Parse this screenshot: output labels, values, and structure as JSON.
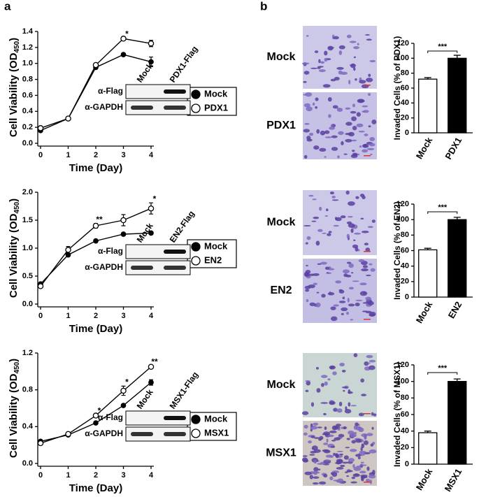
{
  "panel_labels": [
    "a",
    "b"
  ],
  "chart_data": [
    {
      "type": "line",
      "y_label": [
        "Cell Viability (OD",
        "450",
        ")"
      ],
      "x_label": "Time (Day)",
      "x": [
        0,
        1,
        2,
        3,
        4
      ],
      "xlim": [
        0,
        4
      ],
      "xticks": [
        0,
        1,
        2,
        3,
        4
      ],
      "ylim": [
        0,
        1.4
      ],
      "yticks": [
        {
          "value": 0,
          "label": "0.0"
        },
        0.2,
        0.4,
        0.6,
        0.8,
        {
          "value": 1,
          "label": "1.0"
        },
        1.2,
        1.4
      ],
      "legend": "right",
      "series": [
        {
          "name": "Mock",
          "color": "#000000",
          "marker_fill": "#000000",
          "values": [
            0.16,
            0.31,
            0.95,
            1.11,
            1.02
          ],
          "errors": [
            0.01,
            0.01,
            0.01,
            0.01,
            0.06
          ]
        },
        {
          "name": "PDX1",
          "color": "#000000",
          "marker_fill": "#ffffff",
          "values": [
            0.19,
            0.31,
            0.98,
            1.31,
            1.25
          ],
          "errors": [
            0.01,
            0.01,
            0.01,
            0.01,
            0.04
          ]
        }
      ],
      "annotations": [
        {
          "x": 3,
          "text": "*"
        }
      ],
      "inset": {
        "lanes": [
          "Mock",
          "PDX1-Flag"
        ],
        "rows": [
          "α-Flag",
          "α-GAPDH"
        ]
      }
    },
    {
      "type": "line",
      "y_label": [
        "Cell Viability (OD",
        "450",
        ")"
      ],
      "x_label": "Time (Day)",
      "x": [
        0,
        1,
        2,
        3,
        4
      ],
      "xlim": [
        0,
        4
      ],
      "xticks": [
        0,
        1,
        2,
        3,
        4
      ],
      "ylim": [
        0,
        2
      ],
      "yticks": [
        {
          "value": 0,
          "label": "0.0"
        },
        0.5,
        {
          "value": 1,
          "label": "1.0"
        },
        1.5,
        {
          "value": 2,
          "label": "2.0"
        }
      ],
      "legend": "right",
      "series": [
        {
          "name": "Mock",
          "color": "#000000",
          "marker_fill": "#000000",
          "values": [
            0.36,
            0.88,
            1.13,
            1.25,
            1.27
          ],
          "errors": [
            0.01,
            0.02,
            0.01,
            0.01,
            0.01
          ]
        },
        {
          "name": "EN2",
          "color": "#000000",
          "marker_fill": "#ffffff",
          "values": [
            0.32,
            0.97,
            1.4,
            1.5,
            1.71
          ],
          "errors": [
            0.01,
            0.06,
            0.04,
            0.1,
            0.1
          ]
        }
      ],
      "annotations": [
        {
          "x": 2,
          "text": "**"
        },
        {
          "x": 4,
          "text": "*"
        }
      ],
      "inset": {
        "lanes": [
          "Mock",
          "EN2-Flag"
        ],
        "rows": [
          "α-Flag",
          "α-GAPDH"
        ]
      }
    },
    {
      "type": "line",
      "y_label": [
        "Cell Viability (OD",
        "450",
        ")"
      ],
      "x_label": "Time (Day)",
      "x": [
        0,
        1,
        2,
        3,
        4
      ],
      "xlim": [
        0,
        4
      ],
      "xticks": [
        0,
        1,
        2,
        3,
        4
      ],
      "ylim": [
        0,
        1.2
      ],
      "yticks": [
        {
          "value": 0,
          "label": "0.0"
        },
        0.4,
        0.8,
        1.2
      ],
      "legend": "right",
      "series": [
        {
          "name": "Mock",
          "color": "#000000",
          "marker_fill": "#000000",
          "values": [
            0.24,
            0.31,
            0.44,
            0.63,
            0.88
          ],
          "errors": [
            0.01,
            0.01,
            0.01,
            0.01,
            0.03
          ]
        },
        {
          "name": "MSX1",
          "color": "#000000",
          "marker_fill": "#ffffff",
          "values": [
            0.22,
            0.32,
            0.52,
            0.79,
            1.05
          ],
          "errors": [
            0.01,
            0.01,
            0.01,
            0.05,
            0.01
          ]
        }
      ],
      "annotations": [
        {
          "x": 2,
          "text": "*"
        },
        {
          "x": 3,
          "text": "*"
        },
        {
          "x": 4,
          "text": "**"
        }
      ],
      "inset": {
        "lanes": [
          "Mock",
          "MSX1-Flag"
        ],
        "rows": [
          "α-Flag",
          "α-GAPDH"
        ]
      }
    },
    {
      "type": "bar",
      "y_label": "Invaded Cells (% of PDX1)",
      "categories": [
        "Mock",
        "PDX1"
      ],
      "values": [
        72,
        100
      ],
      "errors": [
        2,
        4
      ],
      "colors": [
        "#ffffff",
        "#000000"
      ],
      "ylim": [
        0,
        120
      ],
      "yticks": [
        0,
        20,
        40,
        60,
        80,
        100,
        120
      ],
      "significance": "***",
      "image_labels": [
        "Mock",
        "PDX1"
      ]
    },
    {
      "type": "bar",
      "y_label": "Invaded Cells (% of EN2)",
      "categories": [
        "Mock",
        "EN2"
      ],
      "values": [
        61,
        100
      ],
      "errors": [
        2,
        3
      ],
      "colors": [
        "#ffffff",
        "#000000"
      ],
      "ylim": [
        0,
        120
      ],
      "yticks": [
        0,
        20,
        40,
        60,
        80,
        100,
        120
      ],
      "significance": "***",
      "image_labels": [
        "Mock",
        "EN2"
      ]
    },
    {
      "type": "bar",
      "y_label": "Invaded Cells (% of MSX1)",
      "categories": [
        "Mock",
        "MSX1"
      ],
      "values": [
        38,
        100
      ],
      "errors": [
        2,
        3
      ],
      "colors": [
        "#ffffff",
        "#000000"
      ],
      "ylim": [
        0,
        120
      ],
      "yticks": [
        0,
        20,
        40,
        60,
        80,
        100,
        120
      ],
      "significance": "***",
      "image_labels": [
        "Mock",
        "MSX1"
      ]
    }
  ]
}
